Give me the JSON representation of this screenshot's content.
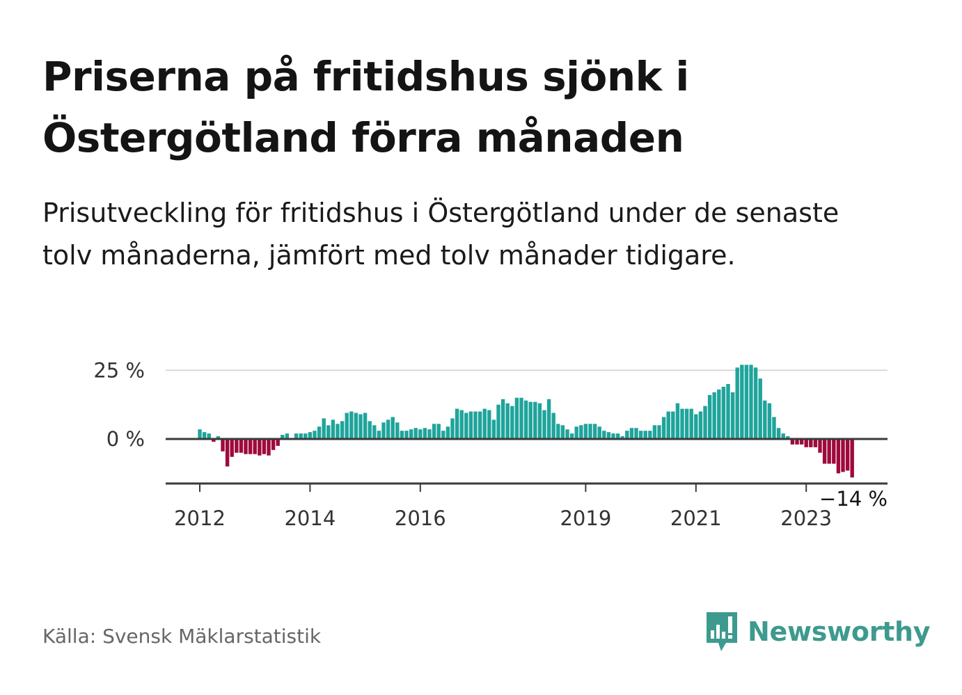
{
  "title": "Priserna på fritidshus sjönk i Östergötland förra månaden",
  "subtitle": "Prisutveckling för fritidshus i Östergötland under de senaste tolv månaderna, jämfört med tolv månader tidigare.",
  "source": "Källa: Svensk Mäklarstatistik",
  "brand": "Newsworthy",
  "colors": {
    "positive": "#1fa49b",
    "negative": "#9e0a3c",
    "axis": "#3a3a3a",
    "grid": "#d9d9d9",
    "brand": "#3e9a8e"
  },
  "chart_data": {
    "type": "bar",
    "x_start": "2012-01",
    "x_end": "2023-12",
    "ylim": [
      -16,
      28
    ],
    "y_ticks": [
      {
        "value": 0,
        "label": "0 %"
      },
      {
        "value": 25,
        "label": "25 %"
      }
    ],
    "x_ticks": [
      {
        "date": "2012-01",
        "label": "2012"
      },
      {
        "date": "2014-01",
        "label": "2014"
      },
      {
        "date": "2016-01",
        "label": "2016"
      },
      {
        "date": "2019-01",
        "label": "2019"
      },
      {
        "date": "2021-01",
        "label": "2021"
      },
      {
        "date": "2023-01",
        "label": "2023"
      }
    ],
    "last_value_label": "−14 %",
    "values": [
      3.5,
      2.5,
      2.0,
      -1.0,
      1.0,
      -4.5,
      -10.0,
      -6.5,
      -5.0,
      -5.0,
      -5.5,
      -5.5,
      -5.5,
      -6.0,
      -5.5,
      -6.0,
      -4.0,
      -2.5,
      1.5,
      2.0,
      0,
      2.0,
      2.0,
      2.0,
      2.5,
      3.0,
      4.5,
      7.5,
      5.0,
      7.0,
      5.5,
      6.5,
      9.5,
      10.0,
      9.5,
      9.0,
      9.5,
      6.5,
      5.0,
      3.0,
      6.0,
      7.0,
      8.0,
      6.0,
      3.0,
      3.0,
      3.5,
      4.0,
      3.5,
      4.0,
      3.5,
      5.5,
      5.5,
      3.0,
      4.5,
      7.5,
      11.0,
      10.5,
      9.5,
      10.0,
      10.0,
      10.0,
      11.0,
      10.5,
      7.0,
      12.5,
      14.5,
      13.0,
      12.0,
      15.0,
      15.0,
      14.0,
      13.5,
      13.5,
      13.0,
      10.5,
      14.5,
      9.5,
      5.5,
      5.0,
      3.5,
      2.0,
      4.5,
      5.0,
      5.5,
      5.5,
      5.5,
      4.5,
      3.0,
      2.5,
      2.0,
      2.0,
      1.0,
      3.0,
      4.0,
      4.0,
      3.0,
      3.0,
      3.0,
      5.0,
      5.0,
      8.0,
      10.0,
      10.0,
      13.0,
      11.0,
      11.0,
      11.0,
      9.0,
      10.0,
      12.0,
      16.0,
      17.0,
      18.0,
      19.0,
      20.0,
      17.0,
      26.0,
      27.0,
      27.0,
      27.0,
      26.0,
      22.0,
      14.0,
      13.0,
      8.0,
      4.0,
      2.0,
      1.0,
      -2.0,
      -2.0,
      -2.0,
      -3.0,
      -3.0,
      -3.0,
      -5.0,
      -9.0,
      -9.0,
      -9.0,
      -12.5,
      -12.0,
      -11.5,
      -14.0
    ]
  }
}
